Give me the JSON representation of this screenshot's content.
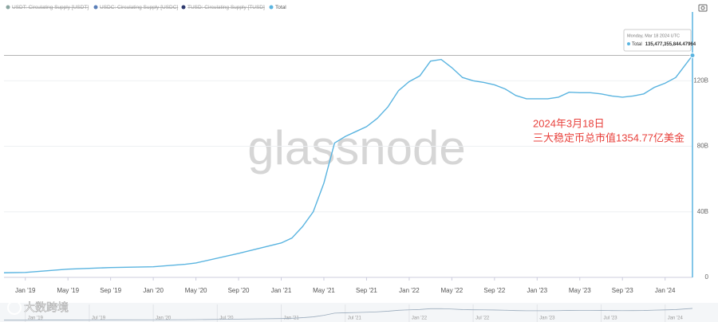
{
  "chart_data": {
    "type": "line",
    "legend": [
      {
        "name": "USDT: Circulating Supply [USDT]",
        "color": "#8aa5a0",
        "hidden": true
      },
      {
        "name": "USDC: Circulating Supply [USDC]",
        "color": "#5a7fb8",
        "hidden": true
      },
      {
        "name": "TUSD: Circulating Supply [TUSD]",
        "color": "#2e3a6e",
        "hidden": true
      }
    ],
    "x": [
      "2018-11",
      "2019-01",
      "2019-05",
      "2019-09",
      "2020-01",
      "2020-04",
      "2020-05",
      "2020-09",
      "2021-01",
      "2021-02",
      "2021-03",
      "2021-04",
      "2021-05",
      "2021-06",
      "2021-07",
      "2021-08",
      "2021-09",
      "2021-10",
      "2021-11",
      "2021-12",
      "2022-01",
      "2022-02",
      "2022-03",
      "2022-04",
      "2022-05",
      "2022-06",
      "2022-07",
      "2022-08",
      "2022-09",
      "2022-10",
      "2022-11",
      "2022-12",
      "2023-01",
      "2023-02",
      "2023-03",
      "2023-04",
      "2023-05",
      "2023-06",
      "2023-07",
      "2023-08",
      "2023-09",
      "2023-10",
      "2023-11",
      "2023-12",
      "2024-01",
      "2024-02",
      "2024-03-18"
    ],
    "series": [
      {
        "name": "Total",
        "color": "#5ab4e0",
        "values": [
          2.8,
          3,
          5,
          6,
          6.5,
          8,
          8.8,
          14.6,
          21,
          24,
          31,
          40,
          57.5,
          82,
          86,
          89,
          92,
          97,
          104,
          114,
          119.5,
          123,
          132,
          133,
          128,
          122,
          120,
          119,
          117.5,
          115,
          111,
          109,
          109,
          109,
          110,
          113,
          112.7,
          112.7,
          112,
          110.7,
          110,
          110.7,
          112,
          116,
          118.5,
          122,
          135.477355844
        ]
      }
    ],
    "xlim": [
      "2018-11",
      "2024-03-18"
    ],
    "ylim": [
      0,
      162
    ],
    "xticks": [
      {
        "value": "2019-01",
        "label": "Jan '19"
      },
      {
        "value": "2019-05",
        "label": "May '19"
      },
      {
        "value": "2019-09",
        "label": "Sep '19"
      },
      {
        "value": "2020-01",
        "label": "Jan '20"
      },
      {
        "value": "2020-05",
        "label": "May '20"
      },
      {
        "value": "2020-09",
        "label": "Sep '20"
      },
      {
        "value": "2021-01",
        "label": "Jan '21"
      },
      {
        "value": "2021-05",
        "label": "May '21"
      },
      {
        "value": "2021-09",
        "label": "Sep '21"
      },
      {
        "value": "2022-01",
        "label": "Jan '22"
      },
      {
        "value": "2022-05",
        "label": "May '22"
      },
      {
        "value": "2022-09",
        "label": "Sep '22"
      },
      {
        "value": "2023-01",
        "label": "Jan '23"
      },
      {
        "value": "2023-05",
        "label": "May '23"
      },
      {
        "value": "2023-09",
        "label": "Sep '23"
      },
      {
        "value": "2024-01",
        "label": "Jan '24"
      }
    ],
    "yticks": [
      0,
      {
        "value": 40,
        "label": "40B"
      },
      {
        "value": 80,
        "label": "80B"
      },
      {
        "value": 120,
        "label": "120B"
      }
    ],
    "grid": true,
    "navigator_xticks": [
      {
        "value": "2019-01",
        "label": "Jan '19"
      },
      {
        "value": "2019-07",
        "label": "Jul '19"
      },
      {
        "value": "2020-01",
        "label": "Jan '20"
      },
      {
        "value": "2020-07",
        "label": "Jul '20"
      },
      {
        "value": "2021-01",
        "label": "Jan '21"
      },
      {
        "value": "2021-07",
        "label": "Jul '21"
      },
      {
        "value": "2022-01",
        "label": "Jan '22"
      },
      {
        "value": "2022-07",
        "label": "Jul '22"
      },
      {
        "value": "2023-01",
        "label": "Jan '23"
      },
      {
        "value": "2023-07",
        "label": "Jul '23"
      },
      {
        "value": "2024-01",
        "label": "Jan '24"
      }
    ],
    "tooltip": {
      "title": "Monday, Mar 18 2024 UTC",
      "series": "Total",
      "value": "135,477,355,844.47964"
    },
    "annotation": [
      "2024年3月18日",
      "三大稳定币总市值1354.77亿美金"
    ],
    "watermark": "glassnode",
    "logo": "大数跨境"
  }
}
